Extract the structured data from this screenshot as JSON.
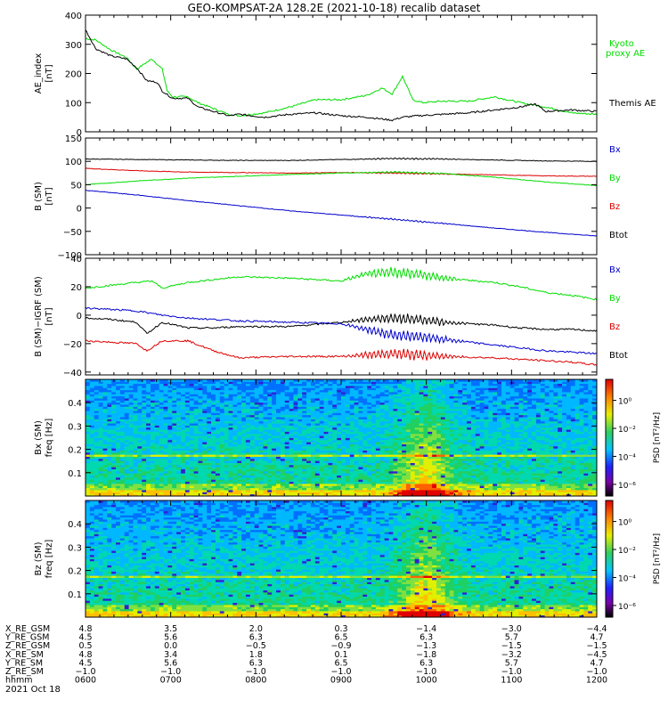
{
  "title": "GEO-KOMPSAT-2A 128.2E (2021-10-18) recalib dataset",
  "date_label": "2021 Oct 18",
  "colors": {
    "black": "#000000",
    "green": "#00dd00",
    "red": "#dd0000",
    "blue": "#0000cc"
  },
  "chart_data": [
    {
      "type": "line",
      "panel": "ae",
      "ylabel": "AE_index\n[nT]",
      "ylim": [
        0,
        400
      ],
      "yticks": [
        "0",
        "100",
        "200",
        "300",
        "400"
      ],
      "x_range": [
        "0600",
        "1200"
      ],
      "series": [
        {
          "name": "Kyoto proxy AE",
          "color": "#00dd00",
          "x": [
            0,
            0.02,
            0.05,
            0.08,
            0.1,
            0.13,
            0.15,
            0.16,
            0.17,
            0.2,
            0.22,
            0.25,
            0.28,
            0.3,
            0.35,
            0.4,
            0.45,
            0.5,
            0.55,
            0.58,
            0.6,
            0.62,
            0.64,
            0.66,
            0.7,
            0.75,
            0.8,
            0.85,
            0.9,
            0.95,
            1.0
          ],
          "y": [
            320,
            315,
            280,
            255,
            215,
            250,
            215,
            140,
            120,
            120,
            100,
            80,
            60,
            55,
            65,
            85,
            110,
            110,
            125,
            150,
            130,
            190,
            110,
            100,
            105,
            105,
            120,
            100,
            85,
            65,
            60
          ]
        },
        {
          "name": "Themis AE",
          "color": "#000000",
          "x": [
            0,
            0.02,
            0.05,
            0.08,
            0.1,
            0.12,
            0.14,
            0.15,
            0.17,
            0.2,
            0.22,
            0.25,
            0.28,
            0.3,
            0.35,
            0.4,
            0.45,
            0.5,
            0.55,
            0.6,
            0.62,
            0.65,
            0.7,
            0.75,
            0.8,
            0.85,
            0.88,
            0.9,
            0.95,
            1.0
          ],
          "y": [
            350,
            285,
            260,
            250,
            220,
            175,
            170,
            140,
            115,
            115,
            85,
            70,
            55,
            60,
            50,
            60,
            65,
            55,
            50,
            40,
            50,
            55,
            60,
            65,
            75,
            85,
            95,
            70,
            75,
            70
          ]
        }
      ],
      "legend": [
        {
          "text": "Kyoto\nproxy AE",
          "color": "#00dd00"
        },
        {
          "text": "Themis AE",
          "color": "#000000"
        }
      ]
    },
    {
      "type": "line",
      "panel": "b",
      "ylabel": "B (SM)\n[nT]",
      "ylim": [
        -100,
        150
      ],
      "yticks": [
        "−100",
        "−50",
        "0",
        "50",
        "100",
        "150"
      ],
      "x_range": [
        "0600",
        "1200"
      ],
      "series": [
        {
          "name": "Btot",
          "color": "#000000",
          "x": [
            0,
            0.1,
            0.2,
            0.3,
            0.4,
            0.5,
            0.6,
            0.7,
            0.8,
            0.9,
            1.0
          ],
          "y": [
            105,
            104,
            103,
            102,
            102,
            104,
            106,
            105,
            103,
            101,
            100
          ]
        },
        {
          "name": "Bz",
          "color": "#dd0000",
          "x": [
            0,
            0.1,
            0.2,
            0.3,
            0.4,
            0.5,
            0.6,
            0.7,
            0.8,
            0.9,
            1.0
          ],
          "y": [
            85,
            80,
            77,
            76,
            75,
            76,
            75,
            73,
            71,
            69,
            68
          ]
        },
        {
          "name": "By",
          "color": "#00dd00",
          "x": [
            0,
            0.1,
            0.2,
            0.3,
            0.4,
            0.5,
            0.6,
            0.7,
            0.8,
            0.9,
            1.0
          ],
          "y": [
            50,
            58,
            64,
            68,
            72,
            75,
            77,
            74,
            66,
            56,
            48
          ]
        },
        {
          "name": "Bx",
          "color": "#0000cc",
          "x": [
            0,
            0.1,
            0.2,
            0.3,
            0.4,
            0.5,
            0.6,
            0.7,
            0.8,
            0.9,
            1.0
          ],
          "y": [
            38,
            28,
            16,
            5,
            -6,
            -15,
            -24,
            -33,
            -43,
            -52,
            -60
          ]
        }
      ],
      "legend": [
        {
          "text": "Bx",
          "color": "#0000cc"
        },
        {
          "text": "By",
          "color": "#00dd00"
        },
        {
          "text": "Bz",
          "color": "#dd0000"
        },
        {
          "text": "Btot",
          "color": "#000000"
        }
      ]
    },
    {
      "type": "line",
      "panel": "db",
      "ylabel": "B (SM)−IGRF (SM)\n[nT]",
      "ylim": [
        -42,
        40
      ],
      "yticks": [
        "−40",
        "−20",
        "0",
        "20",
        "40"
      ],
      "x_range": [
        "0600",
        "1200"
      ],
      "series": [
        {
          "name": "By",
          "color": "#00dd00",
          "x": [
            0,
            0.05,
            0.1,
            0.13,
            0.15,
            0.2,
            0.25,
            0.3,
            0.4,
            0.5,
            0.55,
            0.6,
            0.65,
            0.7,
            0.8,
            0.85,
            0.9,
            0.95,
            1.0
          ],
          "y": [
            19,
            21,
            23,
            24,
            19,
            23,
            25,
            27,
            26,
            24,
            29,
            30,
            29,
            26,
            23,
            20,
            16,
            14,
            11
          ]
        },
        {
          "name": "Btot",
          "color": "#000000",
          "x": [
            0,
            0.05,
            0.1,
            0.12,
            0.15,
            0.2,
            0.25,
            0.3,
            0.4,
            0.5,
            0.55,
            0.6,
            0.65,
            0.7,
            0.8,
            0.85,
            0.9,
            0.95,
            1.0
          ],
          "y": [
            -2,
            -3,
            -5,
            -13,
            -5,
            -9,
            -9,
            -8,
            -8,
            -5,
            -3,
            -2,
            -3,
            -5,
            -7,
            -9,
            -10,
            -10,
            -11
          ]
        },
        {
          "name": "Bx",
          "color": "#0000cc",
          "x": [
            0,
            0.05,
            0.1,
            0.15,
            0.2,
            0.25,
            0.3,
            0.4,
            0.5,
            0.55,
            0.6,
            0.65,
            0.7,
            0.75,
            0.8,
            0.85,
            0.9,
            0.95,
            1.0
          ],
          "y": [
            5,
            4,
            3,
            0,
            -2,
            -3,
            -4,
            -5,
            -6,
            -10,
            -14,
            -15,
            -17,
            -19,
            -21,
            -23,
            -25,
            -26,
            -27
          ]
        },
        {
          "name": "Bz",
          "color": "#dd0000",
          "x": [
            0,
            0.05,
            0.1,
            0.12,
            0.15,
            0.2,
            0.25,
            0.3,
            0.4,
            0.5,
            0.55,
            0.6,
            0.65,
            0.7,
            0.8,
            0.85,
            0.9,
            0.95,
            1.0
          ],
          "y": [
            -18,
            -19,
            -20,
            -25,
            -18,
            -18,
            -25,
            -30,
            -29,
            -29,
            -28,
            -27,
            -28,
            -29,
            -30,
            -31,
            -32,
            -33,
            -35
          ]
        }
      ],
      "legend": [
        {
          "text": "Bx",
          "color": "#0000cc"
        },
        {
          "text": "By",
          "color": "#00dd00"
        },
        {
          "text": "Bz",
          "color": "#dd0000"
        },
        {
          "text": "Btot",
          "color": "#000000"
        }
      ]
    },
    {
      "type": "heatmap",
      "panel": "bx_spec",
      "ylabel": "Bx (SM)\nfreq [Hz]",
      "ylim": [
        0,
        0.5
      ],
      "yticks": [
        "0.1",
        "0.2",
        "0.3",
        "0.4"
      ],
      "colorbar": {
        "label": "PSD [nT²/Hz]",
        "ticks": [
          "10⁰",
          "10⁻²",
          "10⁻⁴",
          "10⁻⁶"
        ]
      },
      "x_range": [
        "0600",
        "1200"
      ]
    },
    {
      "type": "heatmap",
      "panel": "bz_spec",
      "ylabel": "Bz (SM)\nfreq [Hz]",
      "ylim": [
        0,
        0.5
      ],
      "yticks": [
        "0.1",
        "0.2",
        "0.3",
        "0.4"
      ],
      "colorbar": {
        "label": "PSD [nT²/Hz]",
        "ticks": [
          "10⁰",
          "10⁻²",
          "10⁻⁴",
          "10⁻⁶"
        ]
      },
      "x_range": [
        "0600",
        "1200"
      ]
    }
  ],
  "ephemeris": {
    "row_labels": [
      "X_RE_GSM",
      "Y_RE_GSM",
      "Z_RE_GSM",
      "X_RE_SM",
      "Y_RE_SM",
      "Z_RE_SM",
      "hhmm"
    ],
    "columns": [
      [
        "4.8",
        "4.5",
        "0.5",
        "4.8",
        "4.5",
        "−1.0",
        "0600"
      ],
      [
        "3.5",
        "5.6",
        "0.0",
        "3.4",
        "5.6",
        "−1.0",
        "0700"
      ],
      [
        "2.0",
        "6.3",
        "−0.5",
        "1.8",
        "6.3",
        "−1.0",
        "0800"
      ],
      [
        "0.3",
        "6.5",
        "−0.9",
        "0.1",
        "6.5",
        "−1.0",
        "0900"
      ],
      [
        "−1.4",
        "6.3",
        "−1.3",
        "−1.8",
        "6.3",
        "−1.0",
        "1000"
      ],
      [
        "−3.0",
        "5.7",
        "−1.5",
        "−3.2",
        "5.7",
        "−1.0",
        "1100"
      ],
      [
        "−4.4",
        "4.7",
        "−1.5",
        "−4.5",
        "4.7",
        "−1.0",
        "1200"
      ]
    ]
  }
}
